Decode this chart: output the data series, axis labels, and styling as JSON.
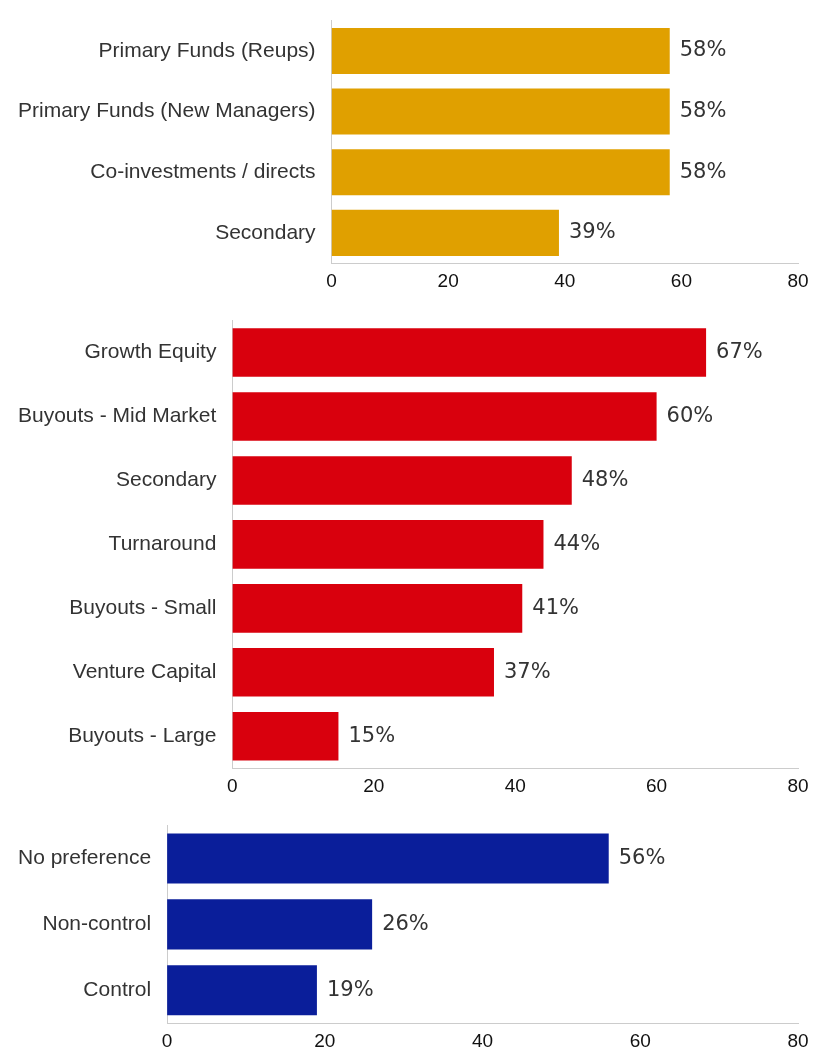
{
  "chart_data": [
    {
      "type": "bar",
      "orientation": "horizontal",
      "categories": [
        "Primary Funds (Reups)",
        "Primary Funds (New Managers)",
        "Co-investments / directs",
        "Secondary"
      ],
      "values": [
        58,
        58,
        58,
        39
      ],
      "value_labels": [
        "58%",
        "58%",
        "58%",
        "39%"
      ],
      "color": "#e0a000",
      "xlim": [
        0,
        80
      ],
      "xticks": [
        0,
        20,
        40,
        60,
        80
      ],
      "grid": false,
      "legend": false
    },
    {
      "type": "bar",
      "orientation": "horizontal",
      "categories": [
        "Growth Equity",
        "Buyouts - Mid Market",
        "Secondary",
        "Turnaround",
        "Buyouts - Small",
        "Venture Capital",
        "Buyouts - Large"
      ],
      "values": [
        67,
        60,
        48,
        44,
        41,
        37,
        15
      ],
      "value_labels": [
        "67%",
        "60%",
        "48%",
        "44%",
        "41%",
        "37%",
        "15%"
      ],
      "color": "#d9000d",
      "xlim": [
        0,
        80
      ],
      "xticks": [
        0,
        20,
        40,
        60,
        80
      ],
      "grid": false,
      "legend": false
    },
    {
      "type": "bar",
      "orientation": "horizontal",
      "categories": [
        "No preference",
        "Non-control",
        "Control"
      ],
      "values": [
        56,
        26,
        19
      ],
      "value_labels": [
        "56%",
        "26%",
        "19%"
      ],
      "color": "#0a1e9a",
      "xlim": [
        0,
        80
      ],
      "xticks": [
        0,
        20,
        40,
        60,
        80
      ],
      "grid": false,
      "legend": false
    }
  ]
}
